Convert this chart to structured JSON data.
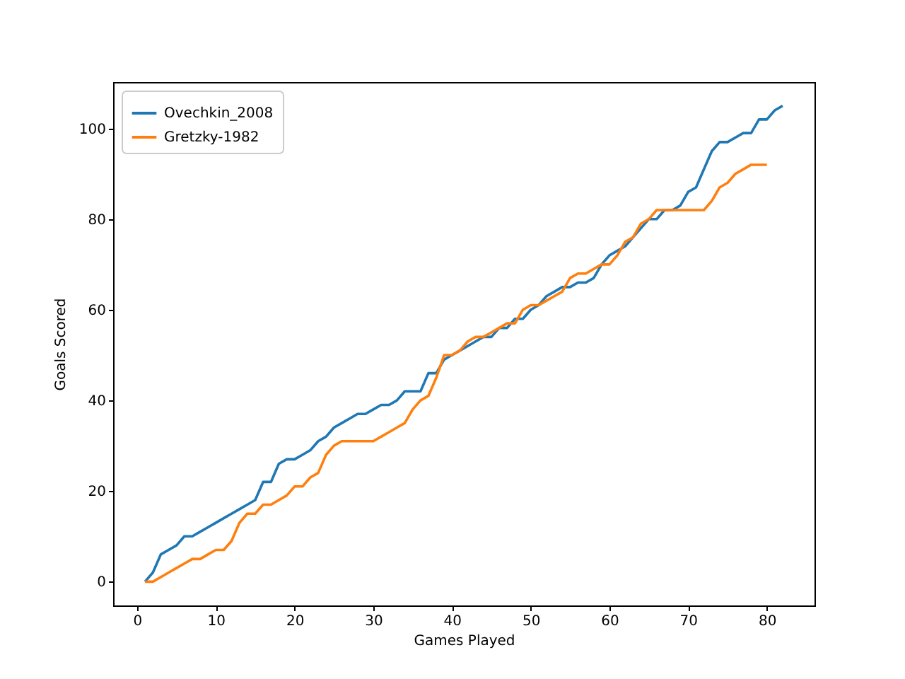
{
  "chart_data": {
    "type": "line",
    "xlabel": "Games Played",
    "ylabel": "Goals Scored",
    "xlim": [
      -3.05,
      86.05
    ],
    "ylim": [
      -5.25,
      110.25
    ],
    "xticks": [
      0,
      10,
      20,
      30,
      40,
      50,
      60,
      70,
      80
    ],
    "yticks": [
      0,
      20,
      40,
      60,
      80,
      100
    ],
    "grid": false,
    "legend": "top left",
    "series": [
      {
        "name": "Ovechkin_2008",
        "color": "#1f77b4",
        "x": [
          1,
          2,
          3,
          4,
          5,
          6,
          7,
          8,
          9,
          10,
          11,
          12,
          13,
          14,
          15,
          16,
          17,
          18,
          19,
          20,
          21,
          22,
          23,
          24,
          25,
          26,
          27,
          28,
          29,
          30,
          31,
          32,
          33,
          34,
          35,
          36,
          37,
          38,
          39,
          40,
          41,
          42,
          43,
          44,
          45,
          46,
          47,
          48,
          49,
          50,
          51,
          52,
          53,
          54,
          55,
          56,
          57,
          58,
          59,
          60,
          61,
          62,
          63,
          64,
          65,
          66,
          67,
          68,
          69,
          70,
          71,
          72,
          73,
          74,
          75,
          76,
          77,
          78,
          79,
          80,
          81,
          82
        ],
        "values": [
          0,
          2,
          6,
          7,
          8,
          10,
          10,
          11,
          12,
          13,
          14,
          15,
          16,
          17,
          18,
          22,
          22,
          26,
          27,
          27,
          28,
          29,
          31,
          32,
          34,
          35,
          36,
          37,
          37,
          38,
          39,
          39,
          40,
          42,
          42,
          42,
          46,
          46,
          49,
          50,
          51,
          52,
          53,
          54,
          54,
          56,
          56,
          58,
          58,
          60,
          61,
          63,
          64,
          65,
          65,
          66,
          66,
          67,
          70,
          72,
          73,
          74,
          76,
          78,
          80,
          80,
          82,
          82,
          83,
          86,
          87,
          91,
          95,
          97,
          97,
          98,
          99,
          99,
          102,
          102,
          104,
          105
        ]
      },
      {
        "name": "Gretzky-1982",
        "color": "#ff7f0e",
        "x": [
          1,
          2,
          3,
          4,
          5,
          6,
          7,
          8,
          9,
          10,
          11,
          12,
          13,
          14,
          15,
          16,
          17,
          18,
          19,
          20,
          21,
          22,
          23,
          24,
          25,
          26,
          27,
          28,
          29,
          30,
          31,
          32,
          33,
          34,
          35,
          36,
          37,
          38,
          39,
          40,
          41,
          42,
          43,
          44,
          45,
          46,
          47,
          48,
          49,
          50,
          51,
          52,
          53,
          54,
          55,
          56,
          57,
          58,
          59,
          60,
          61,
          62,
          63,
          64,
          65,
          66,
          67,
          68,
          69,
          70,
          71,
          72,
          73,
          74,
          75,
          76,
          77,
          78,
          79,
          80
        ],
        "values": [
          0,
          0,
          1,
          2,
          3,
          4,
          5,
          5,
          6,
          7,
          7,
          9,
          13,
          15,
          15,
          17,
          17,
          18,
          19,
          21,
          21,
          23,
          24,
          28,
          30,
          31,
          31,
          31,
          31,
          31,
          32,
          33,
          34,
          35,
          38,
          40,
          41,
          45,
          50,
          50,
          51,
          53,
          54,
          54,
          55,
          56,
          57,
          57,
          60,
          61,
          61,
          62,
          63,
          64,
          67,
          68,
          68,
          69,
          70,
          70,
          72,
          75,
          76,
          79,
          80,
          82,
          82,
          82,
          82,
          82,
          82,
          82,
          84,
          87,
          88,
          90,
          91,
          92,
          92,
          92
        ]
      }
    ]
  }
}
